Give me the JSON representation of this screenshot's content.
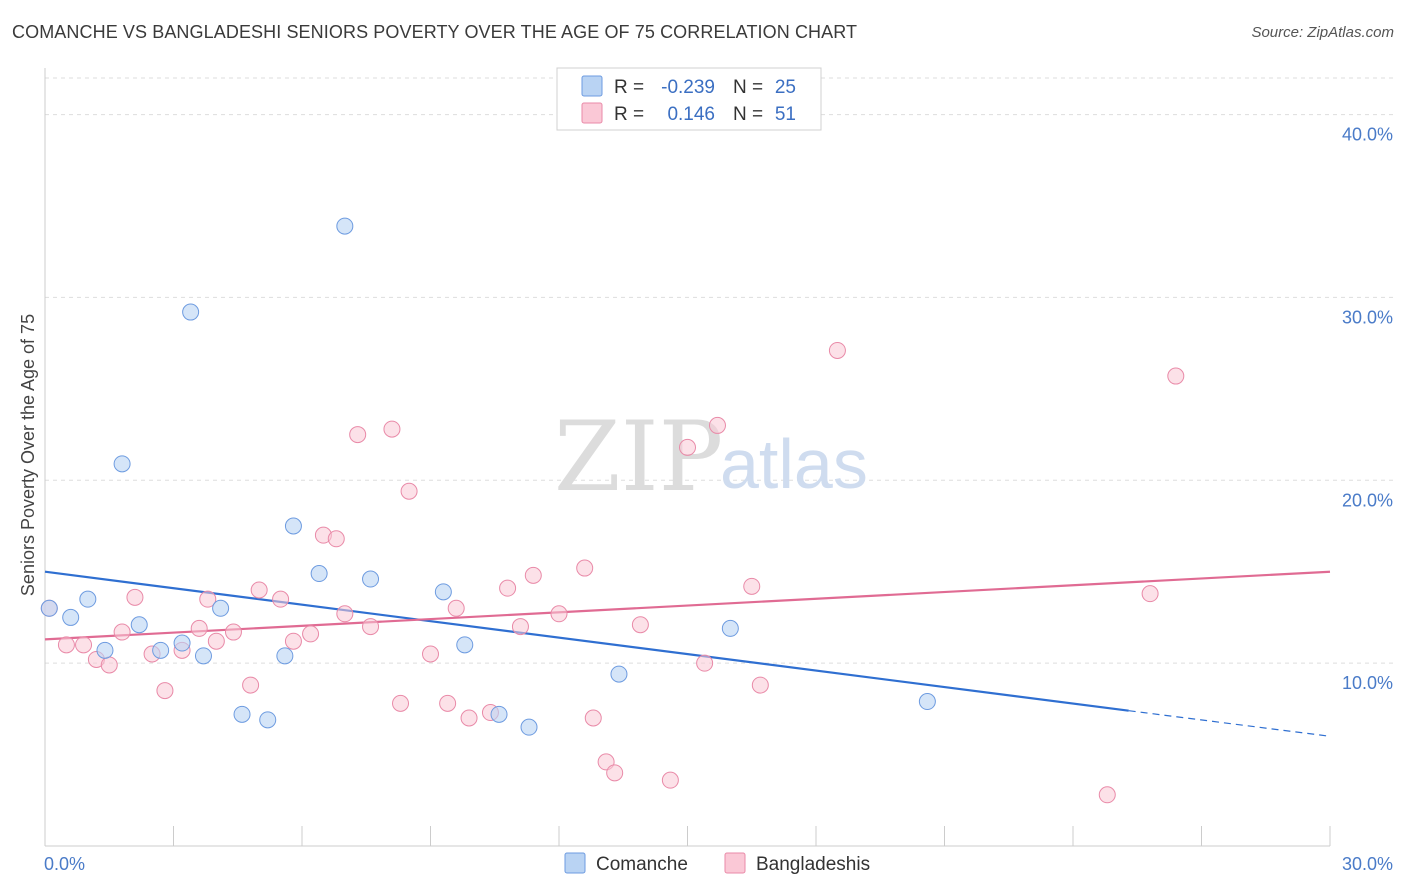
{
  "header": {
    "title": "COMANCHE VS BANGLADESHI SENIORS POVERTY OVER THE AGE OF 75 CORRELATION CHART",
    "source": "Source: ZipAtlas.com"
  },
  "watermark": {
    "zip": "ZIP",
    "atlas": "atlas"
  },
  "legend": {
    "r_label": "R =",
    "n_label": "N =",
    "rows": [
      {
        "r": "-0.239",
        "n": "25"
      },
      {
        "r": "0.146",
        "n": "51"
      }
    ]
  },
  "colors": {
    "comanche_fill": "#b9d3f3",
    "comanche_stroke": "#6d9be0",
    "comanche_line": "#2f6fd1",
    "bangladeshi_fill": "#fac8d6",
    "bangladeshi_stroke": "#e98aa8",
    "bangladeshi_line": "#e06b93",
    "grid": "#dddddd",
    "axis": "#cccccc"
  },
  "chart_data": {
    "type": "scatter",
    "title": "COMANCHE VS BANGLADESHI SENIORS POVERTY OVER THE AGE OF 75 CORRELATION CHART",
    "xlabel": "",
    "ylabel": "Seniors Poverty Over the Age of 75",
    "xlim": [
      0,
      30
    ],
    "ylim": [
      0,
      42
    ],
    "x_tick_labels": [
      "0.0%",
      "30.0%"
    ],
    "y_ticks": [
      10,
      20,
      30,
      40
    ],
    "y_tick_labels": [
      "10.0%",
      "20.0%",
      "30.0%",
      "40.0%"
    ],
    "grid": true,
    "legend_position": "top-center",
    "series": [
      {
        "name": "Comanche",
        "r": -0.239,
        "n": 25,
        "trend": {
          "x0": 0,
          "y0": 15.0,
          "x1": 25.3,
          "y1": 7.4,
          "dashed_to_x": 30,
          "dashed_to_y": 6.0
        },
        "points": [
          [
            0.1,
            13.0
          ],
          [
            0.6,
            12.5
          ],
          [
            1.0,
            13.5
          ],
          [
            1.4,
            10.7
          ],
          [
            1.8,
            20.9
          ],
          [
            2.2,
            12.1
          ],
          [
            2.7,
            10.7
          ],
          [
            3.2,
            11.1
          ],
          [
            3.4,
            29.2
          ],
          [
            3.7,
            10.4
          ],
          [
            4.1,
            13.0
          ],
          [
            4.6,
            7.2
          ],
          [
            5.2,
            6.9
          ],
          [
            5.6,
            10.4
          ],
          [
            5.8,
            17.5
          ],
          [
            6.4,
            14.9
          ],
          [
            7.0,
            33.9
          ],
          [
            7.6,
            14.6
          ],
          [
            9.3,
            13.9
          ],
          [
            9.8,
            11.0
          ],
          [
            10.6,
            7.2
          ],
          [
            11.3,
            6.5
          ],
          [
            13.4,
            9.4
          ],
          [
            16.0,
            11.9
          ],
          [
            20.6,
            7.9
          ]
        ]
      },
      {
        "name": "Bangladeshis",
        "r": 0.146,
        "n": 51,
        "trend": {
          "x0": 0,
          "y0": 11.3,
          "x1": 30,
          "y1": 15.0
        },
        "points": [
          [
            0.1,
            13.0
          ],
          [
            0.5,
            11.0
          ],
          [
            0.9,
            11.0
          ],
          [
            1.2,
            10.2
          ],
          [
            1.5,
            9.9
          ],
          [
            1.8,
            11.7
          ],
          [
            2.1,
            13.6
          ],
          [
            2.5,
            10.5
          ],
          [
            2.8,
            8.5
          ],
          [
            3.2,
            10.7
          ],
          [
            3.6,
            11.9
          ],
          [
            3.8,
            13.5
          ],
          [
            4.0,
            11.2
          ],
          [
            4.4,
            11.7
          ],
          [
            4.8,
            8.8
          ],
          [
            5.0,
            14.0
          ],
          [
            5.5,
            13.5
          ],
          [
            5.8,
            11.2
          ],
          [
            6.2,
            11.6
          ],
          [
            6.5,
            17.0
          ],
          [
            6.8,
            16.8
          ],
          [
            7.0,
            12.7
          ],
          [
            7.3,
            22.5
          ],
          [
            7.6,
            12.0
          ],
          [
            8.1,
            22.8
          ],
          [
            8.3,
            7.8
          ],
          [
            8.5,
            19.4
          ],
          [
            9.0,
            10.5
          ],
          [
            9.4,
            7.8
          ],
          [
            9.6,
            13.0
          ],
          [
            9.9,
            7.0
          ],
          [
            10.4,
            7.3
          ],
          [
            10.8,
            14.1
          ],
          [
            11.1,
            12.0
          ],
          [
            11.4,
            14.8
          ],
          [
            12.0,
            12.7
          ],
          [
            12.6,
            15.2
          ],
          [
            12.8,
            7.0
          ],
          [
            13.1,
            4.6
          ],
          [
            13.3,
            4.0
          ],
          [
            13.9,
            12.1
          ],
          [
            14.6,
            3.6
          ],
          [
            15.0,
            21.8
          ],
          [
            15.4,
            10.0
          ],
          [
            15.7,
            23.0
          ],
          [
            16.5,
            14.2
          ],
          [
            16.7,
            8.8
          ],
          [
            18.5,
            27.1
          ],
          [
            24.8,
            2.8
          ],
          [
            25.8,
            13.8
          ],
          [
            26.4,
            25.7
          ]
        ]
      }
    ]
  }
}
